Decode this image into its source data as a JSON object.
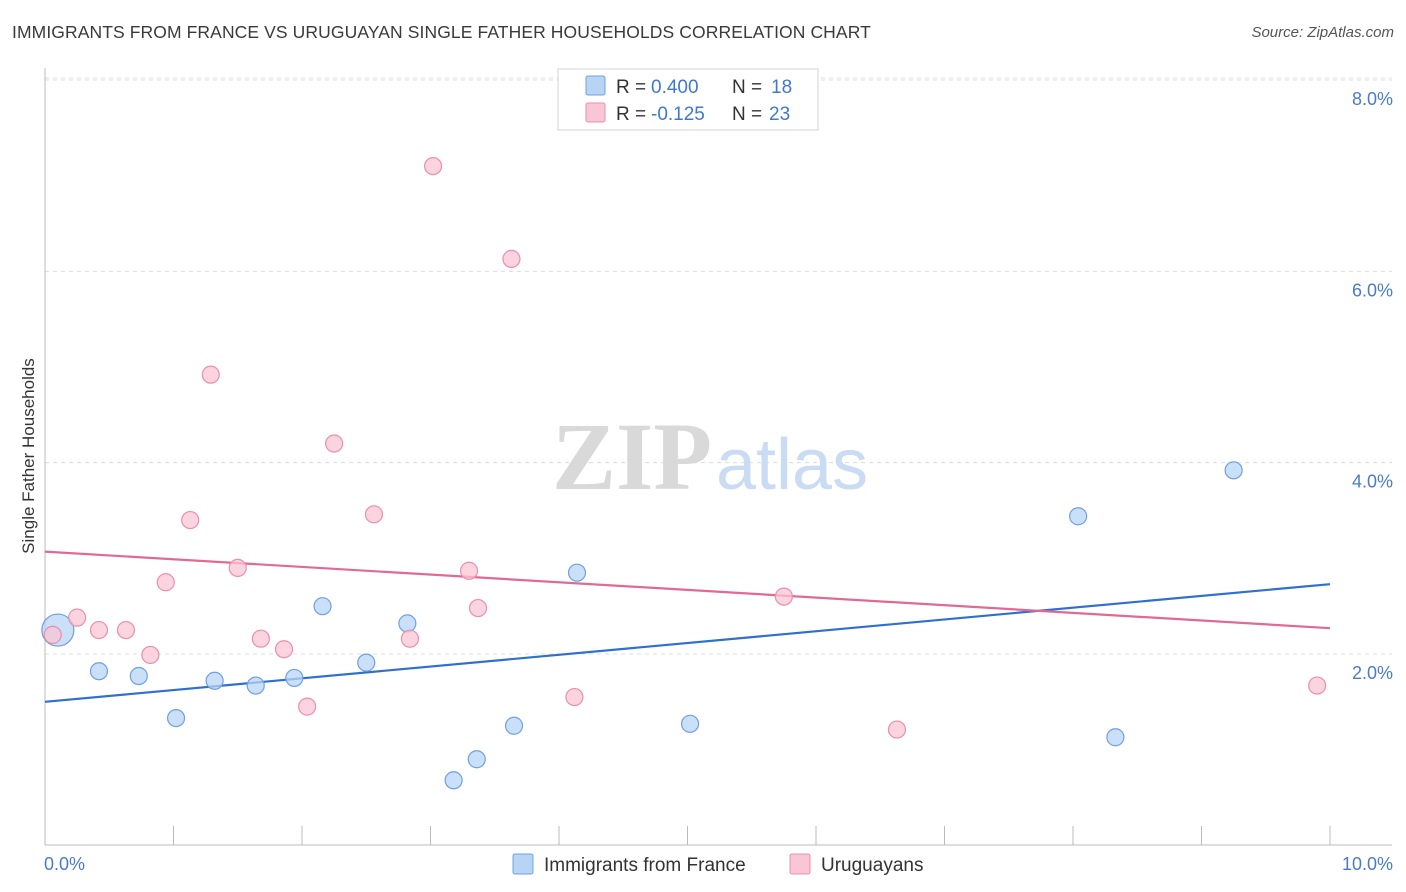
{
  "title": "IMMIGRANTS FROM FRANCE VS URUGUAYAN SINGLE FATHER HOUSEHOLDS CORRELATION CHART",
  "source": "Source: ZipAtlas.com",
  "watermark": {
    "zip": "ZIP",
    "atlas": "atlas"
  },
  "colors": {
    "blue_fill": "#b8d4f5",
    "blue_stroke": "#6fa0e0",
    "blue_line": "#2f6fcf",
    "pink_fill": "#f9c6d6",
    "pink_stroke": "#ea8fae",
    "pink_line": "#e06a93",
    "value_text": "#3f78d0"
  },
  "legend": {
    "rows": [
      {
        "r_label": "R = ",
        "r_value": "0.400",
        "n_label": "N = ",
        "n_value": "18"
      },
      {
        "r_label": "R = ",
        "r_value": "-0.125",
        "n_label": "N = ",
        "n_value": "23"
      }
    ]
  },
  "chart_data": {
    "type": "scatter",
    "title": "IMMIGRANTS FROM FRANCE VS URUGUAYAN SINGLE FATHER HOUSEHOLDS CORRELATION CHART",
    "xlabel": "",
    "ylabel": "Single Father Households",
    "xlim": [
      0,
      10
    ],
    "ylim": [
      0,
      8.3
    ],
    "x_tick_labels": {
      "min": "0.0%",
      "max": "10.0%"
    },
    "y_ticks": [
      {
        "value": 2,
        "label": "2.0%"
      },
      {
        "value": 4,
        "label": "4.0%"
      },
      {
        "value": 6,
        "label": "6.0%"
      },
      {
        "value": 8,
        "label": "8.0%"
      }
    ],
    "grid": "horizontal-dashed",
    "legend_position": "top-center",
    "series": [
      {
        "name": "Immigrants from France",
        "color": "blue",
        "points": [
          {
            "x": 0.1,
            "y": 2.25,
            "big": true
          },
          {
            "x": 0.42,
            "y": 1.82
          },
          {
            "x": 0.73,
            "y": 1.77
          },
          {
            "x": 1.02,
            "y": 1.33
          },
          {
            "x": 1.32,
            "y": 1.72
          },
          {
            "x": 1.64,
            "y": 1.67
          },
          {
            "x": 1.94,
            "y": 1.75
          },
          {
            "x": 2.16,
            "y": 2.5
          },
          {
            "x": 2.5,
            "y": 1.91
          },
          {
            "x": 2.82,
            "y": 2.32
          },
          {
            "x": 3.18,
            "y": 0.68
          },
          {
            "x": 3.36,
            "y": 0.9
          },
          {
            "x": 3.65,
            "y": 1.25
          },
          {
            "x": 4.14,
            "y": 2.85
          },
          {
            "x": 5.02,
            "y": 1.27
          },
          {
            "x": 8.04,
            "y": 3.44
          },
          {
            "x": 8.33,
            "y": 1.13
          },
          {
            "x": 9.25,
            "y": 3.92
          }
        ],
        "trend": {
          "x0": 0,
          "y0": 1.5,
          "x1": 10,
          "y1": 2.73
        }
      },
      {
        "name": "Uruguayans",
        "color": "pink",
        "points": [
          {
            "x": 0.06,
            "y": 2.2
          },
          {
            "x": 0.25,
            "y": 2.38
          },
          {
            "x": 0.42,
            "y": 2.25
          },
          {
            "x": 0.63,
            "y": 2.25
          },
          {
            "x": 0.82,
            "y": 1.99
          },
          {
            "x": 0.94,
            "y": 2.75
          },
          {
            "x": 1.13,
            "y": 3.4
          },
          {
            "x": 1.29,
            "y": 4.92
          },
          {
            "x": 1.5,
            "y": 2.9
          },
          {
            "x": 1.68,
            "y": 2.16
          },
          {
            "x": 1.86,
            "y": 2.05
          },
          {
            "x": 2.04,
            "y": 1.45
          },
          {
            "x": 2.25,
            "y": 4.2
          },
          {
            "x": 2.56,
            "y": 3.46
          },
          {
            "x": 2.84,
            "y": 2.16
          },
          {
            "x": 3.02,
            "y": 7.1
          },
          {
            "x": 3.3,
            "y": 2.87
          },
          {
            "x": 3.37,
            "y": 2.48
          },
          {
            "x": 3.63,
            "y": 6.13
          },
          {
            "x": 4.12,
            "y": 1.55
          },
          {
            "x": 5.75,
            "y": 2.6
          },
          {
            "x": 6.63,
            "y": 1.21
          },
          {
            "x": 9.9,
            "y": 1.67
          }
        ],
        "trend": {
          "x0": 0,
          "y0": 3.07,
          "x1": 10,
          "y1": 2.27
        }
      }
    ]
  }
}
